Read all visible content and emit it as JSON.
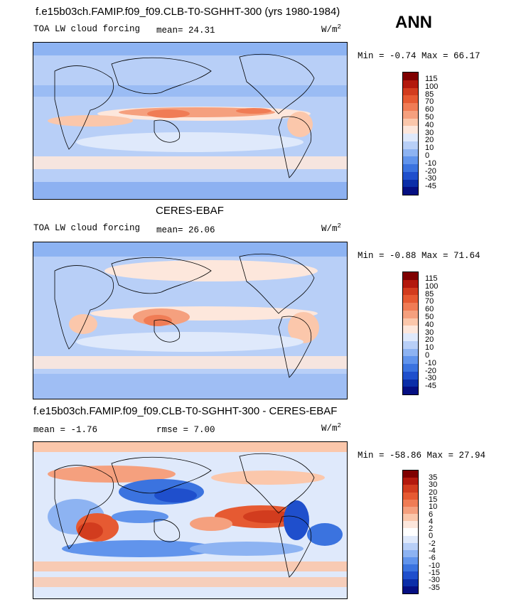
{
  "season": "ANN",
  "panels": [
    {
      "title": "f.e15b03ch.FAMIP.f09_f09.CLB-T0-SGHHT-300 (yrs 1980-1984)",
      "left_label": "TOA LW cloud forcing",
      "stat_label": "mean=",
      "stat_value": "24.31",
      "units": "W/m",
      "units_sup": "2",
      "minmax": "Min =  -0.74 Max =  66.17",
      "levels": [
        "115",
        "100",
        "85",
        "70",
        "60",
        "50",
        "40",
        "30",
        "20",
        "10",
        "0",
        "-10",
        "-20",
        "-30",
        "-45"
      ],
      "colors": [
        "#7f0000",
        "#b3190d",
        "#d23c1e",
        "#e65a32",
        "#f07c55",
        "#f5a07e",
        "#fbc7ab",
        "#fde7dc",
        "#dfe9fb",
        "#b8cff7",
        "#8db3f2",
        "#6194ec",
        "#3b73df",
        "#1f4fcc",
        "#0b2ea8",
        "#050f82"
      ]
    },
    {
      "title": "CERES-EBAF",
      "left_label": "TOA LW cloud forcing",
      "stat_label": "mean=",
      "stat_value": "26.06",
      "units": "W/m",
      "units_sup": "2",
      "minmax": "Min =  -0.88 Max =  71.64",
      "levels": [
        "115",
        "100",
        "85",
        "70",
        "60",
        "50",
        "40",
        "30",
        "20",
        "10",
        "0",
        "-10",
        "-20",
        "-30",
        "-45"
      ],
      "colors": [
        "#7f0000",
        "#b3190d",
        "#d23c1e",
        "#e65a32",
        "#f07c55",
        "#f5a07e",
        "#fbc7ab",
        "#fde7dc",
        "#dfe9fb",
        "#b8cff7",
        "#8db3f2",
        "#6194ec",
        "#3b73df",
        "#1f4fcc",
        "#0b2ea8",
        "#050f82"
      ]
    },
    {
      "title": "f.e15b03ch.FAMIP.f09_f09.CLB-T0-SGHHT-300 - CERES-EBAF",
      "mean_label": "mean =",
      "mean_value": "-1.76",
      "rmse_label": "rmse =",
      "rmse_value": "7.00",
      "units": "W/m",
      "units_sup": "2",
      "minmax": "Min = -58.86 Max =  27.94",
      "levels": [
        "35",
        "30",
        "20",
        "15",
        "10",
        "6",
        "4",
        "2",
        "0",
        "-2",
        "-4",
        "-6",
        "-10",
        "-15",
        "-30",
        "-35"
      ],
      "colors": [
        "#7f0000",
        "#b3190d",
        "#d23c1e",
        "#e65a32",
        "#f07c55",
        "#f5a07e",
        "#fbc7ab",
        "#fde7dc",
        "#ffffff",
        "#dfe9fb",
        "#b8cff7",
        "#8db3f2",
        "#6194ec",
        "#3b73df",
        "#1f4fcc",
        "#0b2ea8",
        "#050f82"
      ]
    }
  ]
}
